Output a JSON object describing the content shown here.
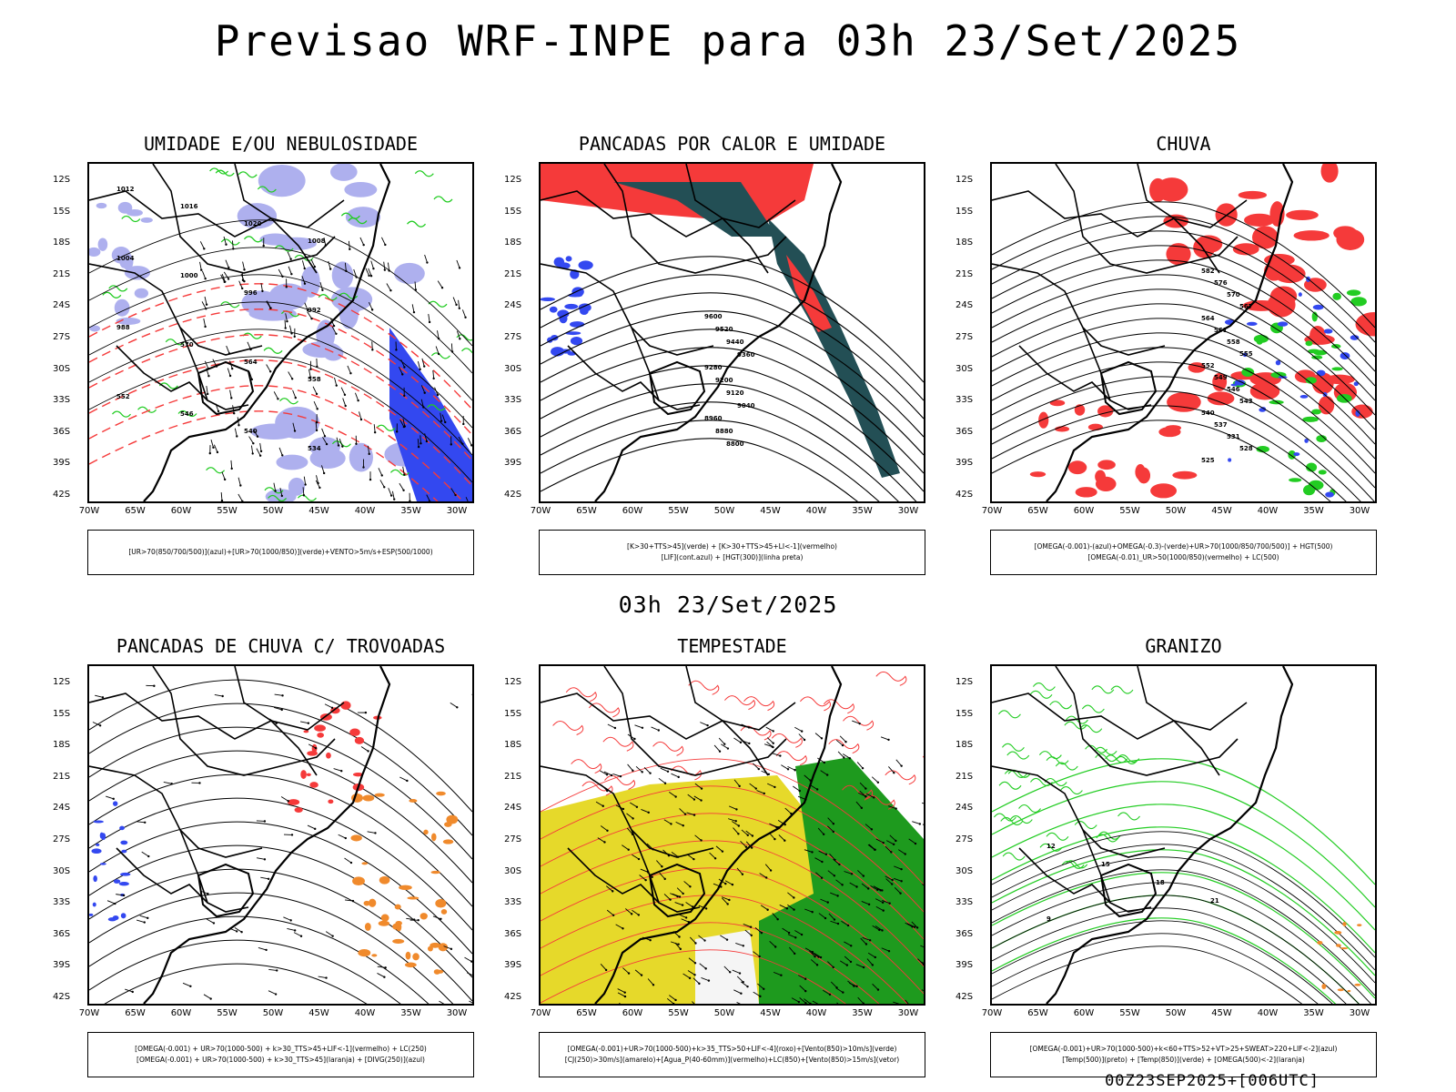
{
  "header": {
    "title": "Previsao WRF-INPE  para 03h 23/Set/2025"
  },
  "mid_title": "03h 23/Set/2025",
  "footer": "00Z23SEP2025+[006UTC]",
  "axes": {
    "lat_labels": [
      "12S",
      "15S",
      "18S",
      "21S",
      "24S",
      "27S",
      "30S",
      "33S",
      "36S",
      "39S",
      "42S"
    ],
    "lon_labels": [
      "70W",
      "65W",
      "60W",
      "55W",
      "50W",
      "45W",
      "40W",
      "35W",
      "30W"
    ]
  },
  "panels": [
    {
      "title": "UMIDADE E/OU NEBULOSIDADE",
      "legend": [
        "[UR>70(850/700/500)](azul)+[UR>70(1000/850)](verde)+VENTO>5m/s+ESP(500/1000)"
      ]
    },
    {
      "title": "PANCADAS POR CALOR E UMIDADE",
      "legend": [
        "[K>30+TTS>45](verde) + [K>30+TTS>45+LI<-1](vermelho)",
        "[LIF](cont.azul) + [HGT(300)](linha preta)"
      ]
    },
    {
      "title": "CHUVA",
      "legend": [
        "[OMEGA(-0.001)-(azul)+OMEGA(-0.3)-(verde)+UR>70(1000/850/700/500)] + HGT(500)",
        "[OMEGA(-0.01)_UR>50(1000/850)(vermelho) + LC(500)"
      ]
    },
    {
      "title": "PANCADAS DE CHUVA C/ TROVOADAS",
      "legend": [
        "[OMEGA(-0.001) + UR>70(1000-500) + k>30_TTS>45+LIF<-1](vermelho) + LC(250)",
        "[OMEGA(-0.001) + UR>70(1000-500) + k>30_TTS>45](laranja) + [DIVG(250)](azul)"
      ]
    },
    {
      "title": "TEMPESTADE",
      "legend": [
        "[OMEGA(-0.001)+UR>70(1000-500)+k>35_TTS>50+LIF<-4](roxo)+[Vento(850)>10m/s](verde)",
        "[CJ(250)>30m/s](amarelo)+[Agua_P(40-60mm)](vermelho)+LC(850)+[Vento(850)>15m/s](vetor)"
      ]
    },
    {
      "title": "GRANIZO",
      "legend": [
        "[OMEGA(-0.001)+UR>70(1000-500)+k<60+TTS>52+VT>25+SWEAT>220+LIF<-2](azul)",
        "[Temp(500)](preto) + [Temp(850)](verde) + [OMEGA(500)<-2](laranja)"
      ]
    }
  ],
  "contour_labels": {
    "p1": [
      "1012",
      "1016",
      "1020",
      "1008",
      "1004",
      "1000",
      "996",
      "992",
      "988",
      "570",
      "564",
      "558",
      "552",
      "546",
      "540",
      "534"
    ],
    "p2": [
      "9600",
      "9520",
      "9440",
      "9360",
      "9280",
      "9200",
      "9120",
      "9040",
      "8960",
      "8880",
      "8800"
    ],
    "p3": [
      "582",
      "576",
      "570",
      "567",
      "564",
      "561",
      "558",
      "555",
      "552",
      "549",
      "546",
      "543",
      "540",
      "537",
      "531",
      "528",
      "525"
    ],
    "p6": [
      "12",
      "15",
      "18",
      "21",
      "9"
    ]
  },
  "colors": {
    "red": "#f53a3a",
    "green": "#22cc22",
    "blue": "#3348f0",
    "darkteal": "#234f55",
    "lavender": "#aeb0ee",
    "orange": "#f08a2c",
    "yellow": "#e6d92a",
    "darkgreen": "#1e9a1e"
  }
}
